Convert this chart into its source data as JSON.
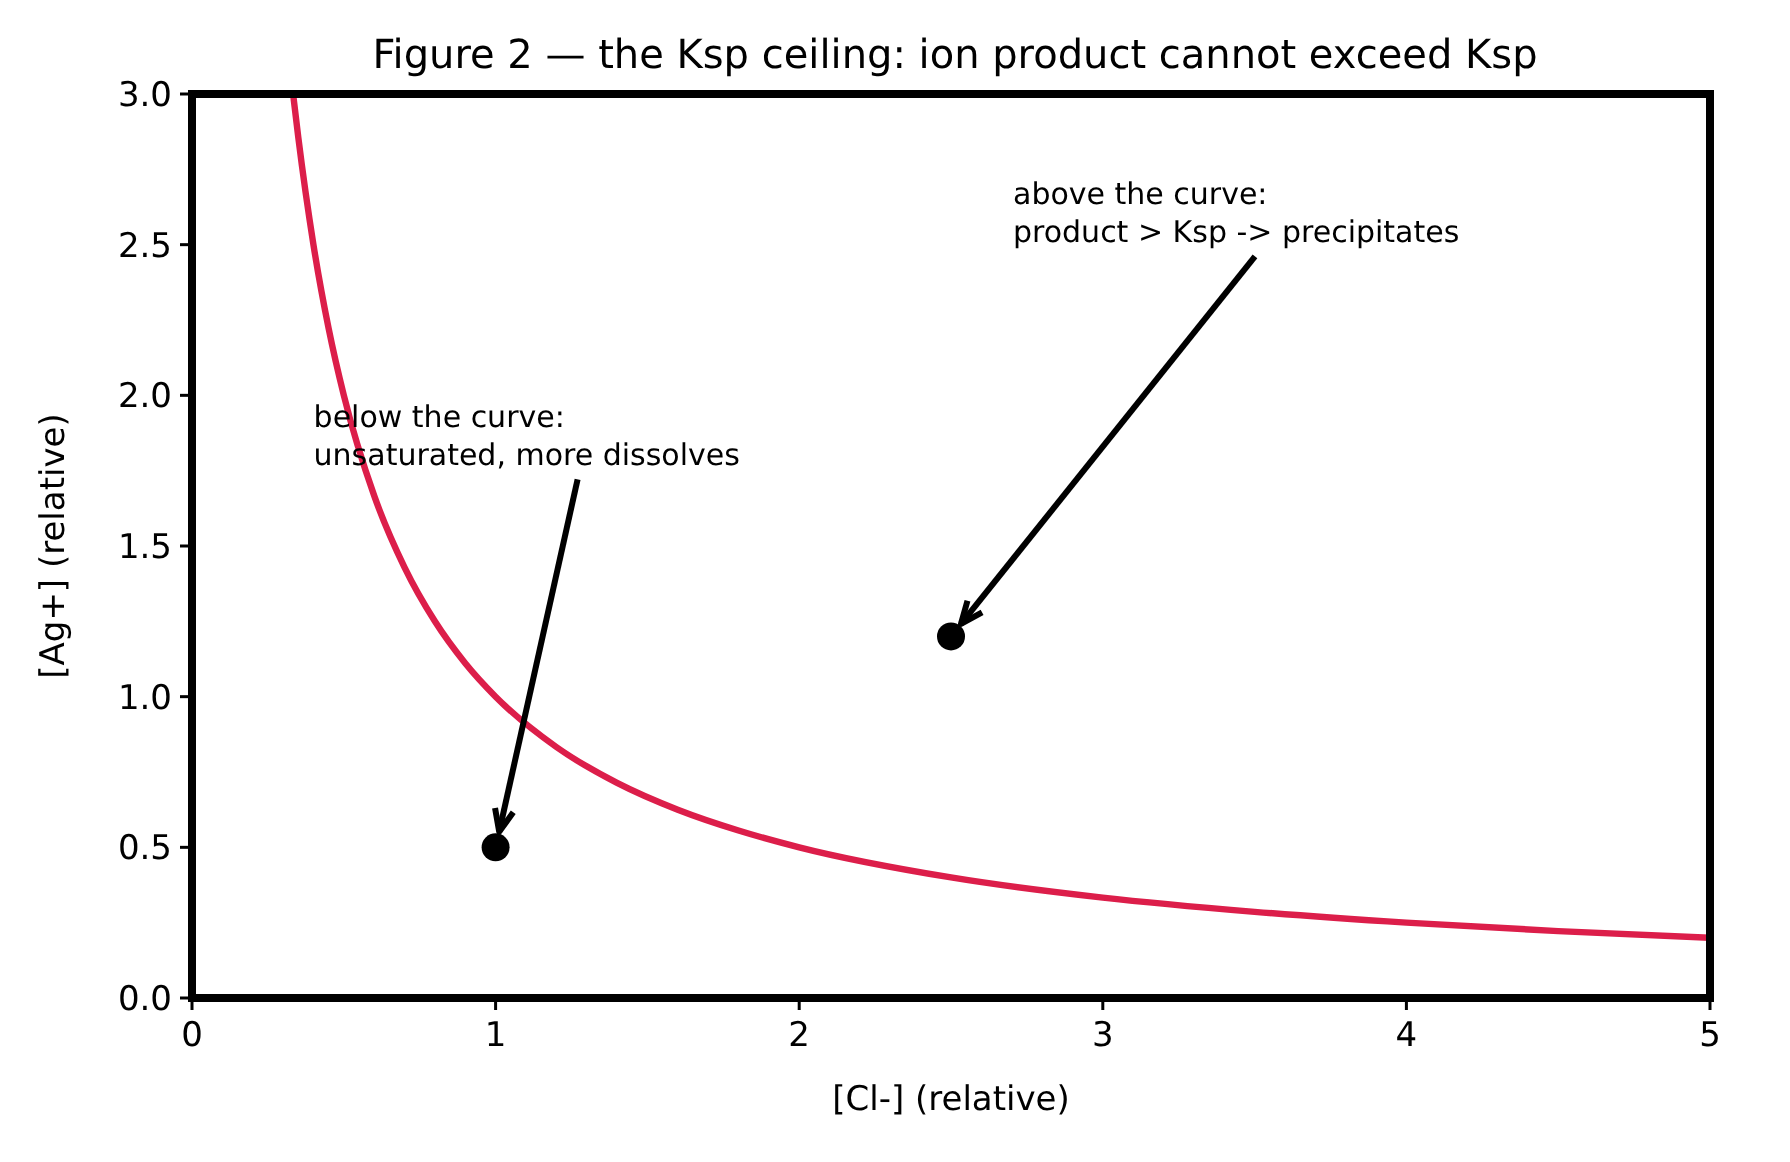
{
  "chart_data": {
    "type": "line",
    "title": "Figure 2 — the Ksp ceiling: ion product cannot exceed Ksp",
    "xlabel": "[Cl-]  (relative)",
    "ylabel": "[Ag+]  (relative)",
    "xlim": [
      0,
      5
    ],
    "ylim": [
      0,
      3
    ],
    "xticks": [
      0,
      1,
      2,
      3,
      4,
      5
    ],
    "yticks": [
      {
        "value": 0,
        "label": "0.0"
      },
      {
        "value": 0.5,
        "label": "0.5"
      },
      {
        "value": 1,
        "label": "1.0"
      },
      {
        "value": 1.5,
        "label": "1.5"
      },
      {
        "value": 2,
        "label": "2.0"
      },
      {
        "value": 2.5,
        "label": "2.5"
      },
      {
        "value": 3,
        "label": "3.0"
      }
    ],
    "grid": false,
    "series": [
      {
        "color": "#dc1e4a",
        "x": [
          0.333,
          0.35,
          0.4,
          0.45,
          0.5,
          0.6,
          0.7,
          0.8,
          0.9,
          1,
          1.2,
          1.4,
          1.6,
          1.8,
          2,
          2.5,
          3,
          3.5,
          4,
          4.5,
          5
        ],
        "values": [
          3.0,
          2.857,
          2.5,
          2.222,
          2.0,
          1.667,
          1.429,
          1.25,
          1.111,
          1.0,
          0.833,
          0.714,
          0.625,
          0.556,
          0.5,
          0.4,
          0.333,
          0.286,
          0.25,
          0.222,
          0.2
        ]
      },
      {
        "type": "scatter",
        "color": "#000000",
        "marker": "circle",
        "x": [
          1,
          2.5
        ],
        "values": [
          0.5,
          1.2
        ]
      }
    ],
    "annotations": [
      {
        "text": "below the curve:\nunsaturated, more dissolves",
        "x": 1,
        "y": 0.5
      },
      {
        "text": "above the curve:\nproduct > Ksp -> precipitates",
        "x": 2.5,
        "y": 1.2
      }
    ]
  }
}
